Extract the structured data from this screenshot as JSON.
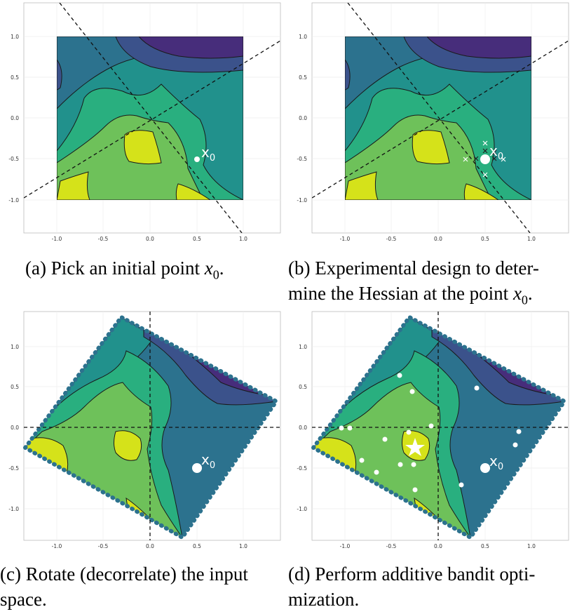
{
  "captions": {
    "a": {
      "prefix": "(a) Pick an initial point ",
      "math": "x",
      "sub": "0",
      "suffix": "."
    },
    "b": {
      "line1": "(b) Experimental design to deter-",
      "line2_prefix": "mine the Hessian at the point ",
      "math": "x",
      "sub": "0",
      "suffix": "."
    },
    "c": {
      "line1": "(c) Rotate (decorrelate) the input",
      "line2": "space."
    },
    "d": {
      "line1": "(d) Perform additive bandit opti-",
      "line2": "mization."
    }
  },
  "point_label": {
    "base": "x",
    "sub": "0"
  },
  "axis_ticks": {
    "x": [
      "-1.0",
      "-0.5",
      "0.0",
      "0.5",
      "1.0"
    ],
    "y": [
      "1.0",
      "0.5",
      "0.0",
      "-0.5",
      "-1.0"
    ]
  },
  "colors": {
    "level1": "#fde725",
    "level1b": "#d5e21a",
    "level2": "#6ec15a",
    "level3": "#29af7f",
    "level4": "#21918c",
    "level5": "#2c728e",
    "level6": "#3b528b",
    "level7": "#472d7b",
    "marker": "#ffffff",
    "grid": "#e8e8e8"
  }
}
